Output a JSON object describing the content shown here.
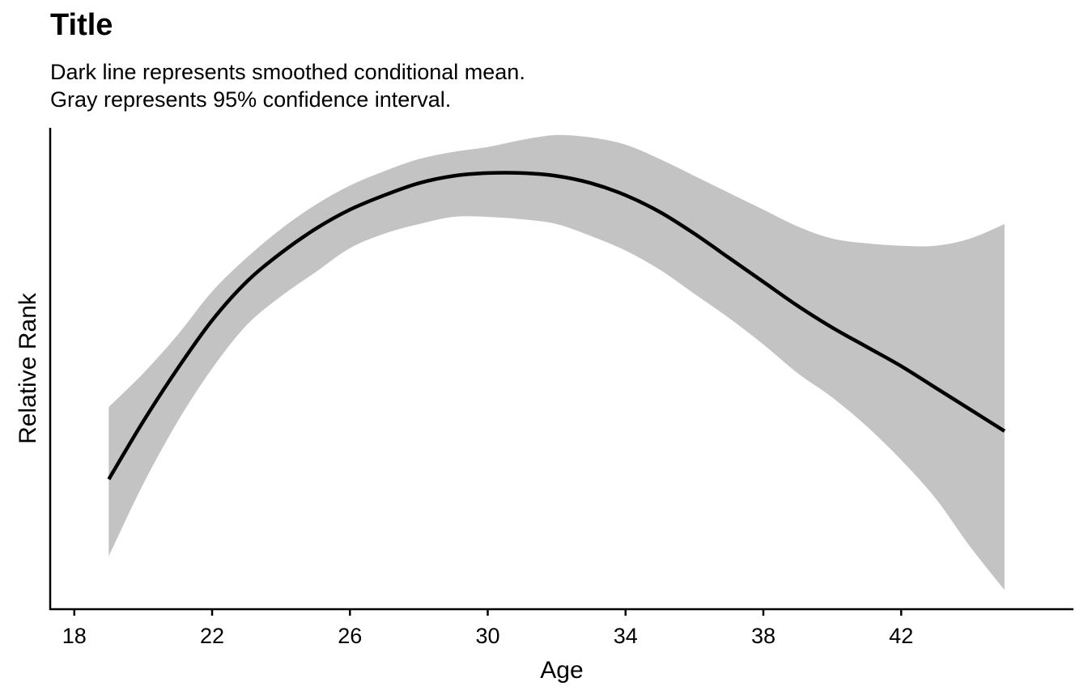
{
  "chart_data": {
    "type": "line",
    "title": "Title",
    "subtitle_lines": [
      "Dark line represents smoothed conditional mean.",
      "Gray represents 95% confidence interval."
    ],
    "xlabel": "Age",
    "ylabel": "Relative Rank",
    "xlim": [
      17.3,
      47.0
    ],
    "ylim": [
      0,
      1
    ],
    "x_ticks": [
      18,
      22,
      26,
      30,
      34,
      38,
      42
    ],
    "y_ticks": [],
    "colors": {
      "line": "#000000",
      "band": "#c3c3c3",
      "axis": "#000000"
    },
    "series": [
      {
        "x": [
          19,
          20,
          21,
          22,
          23,
          24,
          25,
          26,
          27,
          28,
          29,
          30,
          31,
          32,
          33,
          34,
          35,
          36,
          37,
          38,
          39,
          40,
          41,
          42,
          43,
          44,
          45
        ],
        "y": [
          0.27,
          0.39,
          0.5,
          0.6,
          0.68,
          0.74,
          0.79,
          0.83,
          0.86,
          0.885,
          0.9,
          0.906,
          0.906,
          0.9,
          0.885,
          0.86,
          0.825,
          0.78,
          0.73,
          0.68,
          0.63,
          0.585,
          0.545,
          0.505,
          0.46,
          0.415,
          0.37
        ],
        "lower": [
          0.11,
          0.26,
          0.39,
          0.5,
          0.59,
          0.65,
          0.7,
          0.75,
          0.78,
          0.8,
          0.815,
          0.815,
          0.81,
          0.8,
          0.775,
          0.745,
          0.705,
          0.655,
          0.605,
          0.55,
          0.49,
          0.44,
          0.38,
          0.31,
          0.23,
          0.13,
          0.04
        ],
        "upper": [
          0.42,
          0.49,
          0.57,
          0.66,
          0.73,
          0.79,
          0.84,
          0.88,
          0.91,
          0.935,
          0.95,
          0.96,
          0.975,
          0.985,
          0.98,
          0.965,
          0.935,
          0.9,
          0.865,
          0.83,
          0.795,
          0.77,
          0.76,
          0.755,
          0.755,
          0.77,
          0.8
        ]
      }
    ]
  }
}
